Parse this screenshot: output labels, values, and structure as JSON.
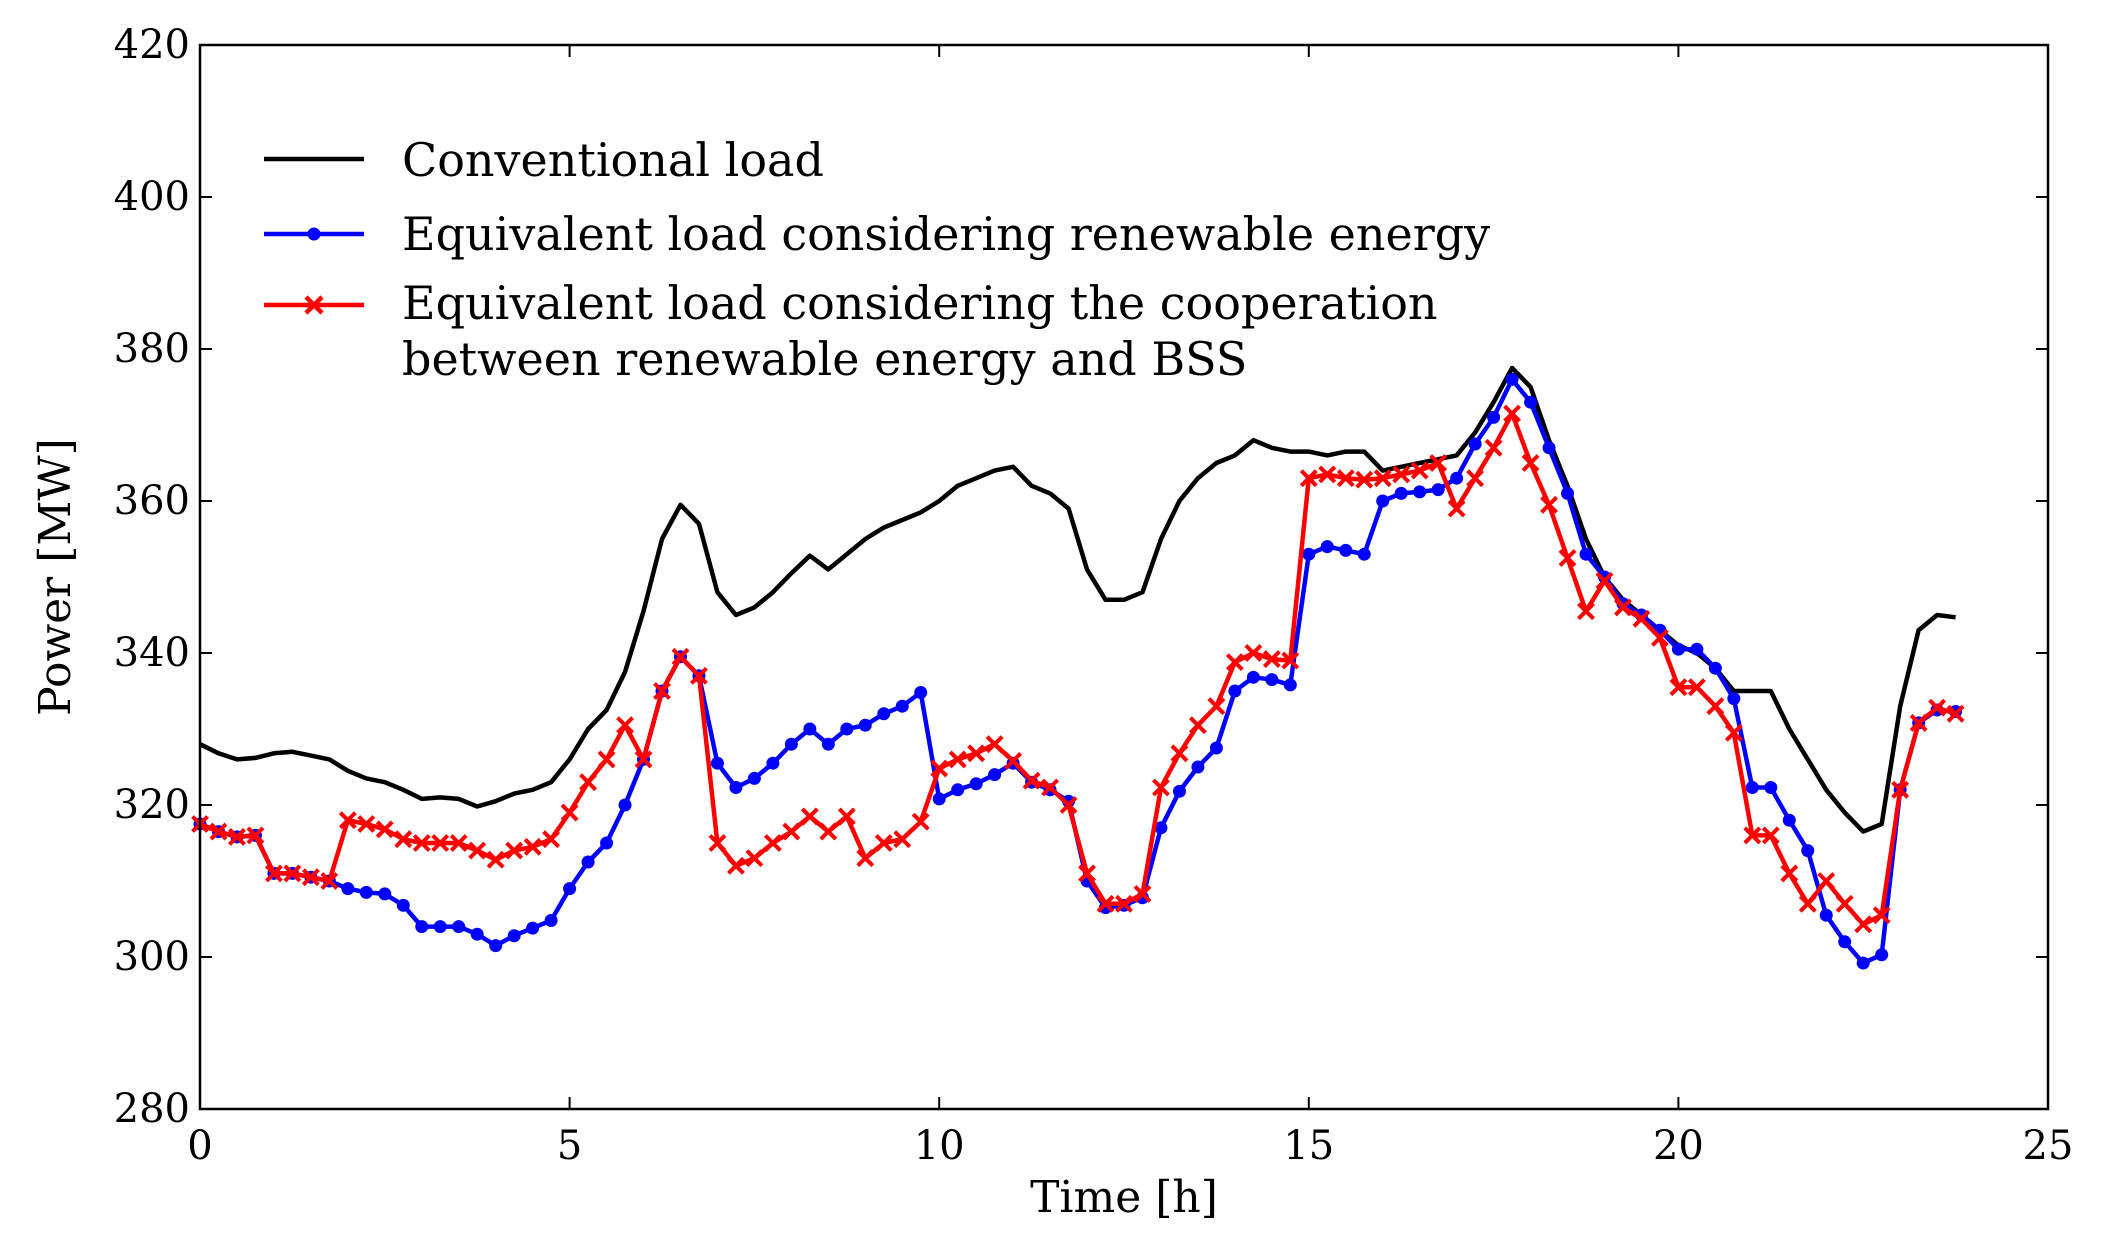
{
  "chart_data": {
    "type": "line",
    "title": "",
    "xlabel": "Time [h]",
    "ylabel": "Power [MW]",
    "xlim": [
      0,
      25
    ],
    "ylim": [
      280,
      420
    ],
    "xticks": [
      0,
      5,
      10,
      15,
      20,
      25
    ],
    "yticks": [
      280,
      300,
      320,
      340,
      360,
      380,
      400,
      420
    ],
    "grid": false,
    "legend_position": "top-left",
    "x": [
      0,
      0.25,
      0.5,
      0.75,
      1,
      1.25,
      1.5,
      1.75,
      2,
      2.25,
      2.5,
      2.75,
      3,
      3.25,
      3.5,
      3.75,
      4,
      4.25,
      4.5,
      4.75,
      5,
      5.25,
      5.5,
      5.75,
      6,
      6.25,
      6.5,
      6.75,
      7,
      7.25,
      7.5,
      7.75,
      8,
      8.25,
      8.5,
      8.75,
      9,
      9.25,
      9.5,
      9.75,
      10,
      10.25,
      10.5,
      10.75,
      11,
      11.25,
      11.5,
      11.75,
      12,
      12.25,
      12.5,
      12.75,
      13,
      13.25,
      13.5,
      13.75,
      14,
      14.25,
      14.5,
      14.75,
      15,
      15.25,
      15.5,
      15.75,
      16,
      16.25,
      16.5,
      16.75,
      17,
      17.25,
      17.5,
      17.75,
      18,
      18.25,
      18.5,
      18.75,
      19,
      19.25,
      19.5,
      19.75,
      20,
      20.25,
      20.5,
      20.75,
      21,
      21.25,
      21.5,
      21.75,
      22,
      22.25,
      22.5,
      22.75,
      23,
      23.25,
      23.5,
      23.75
    ],
    "series": [
      {
        "name": "Conventional load",
        "color": "#000000",
        "marker": "none",
        "values": [
          328.0,
          326.8,
          326.0,
          326.2,
          326.8,
          327.0,
          326.5,
          326.0,
          324.5,
          323.5,
          323.0,
          322.0,
          320.8,
          321.0,
          320.8,
          319.8,
          320.5,
          321.5,
          322.0,
          323.0,
          326.0,
          330.0,
          332.5,
          337.5,
          345.5,
          355.0,
          359.5,
          357.0,
          348.0,
          345.0,
          346.0,
          348.0,
          350.5,
          352.8,
          351.0,
          353.0,
          355.0,
          356.5,
          357.5,
          358.5,
          360.0,
          362.0,
          363.0,
          364.0,
          364.5,
          362.0,
          361.0,
          359.0,
          351.0,
          347.0,
          347.0,
          348.0,
          355.0,
          360.0,
          363.0,
          365.0,
          366.0,
          368.0,
          367.0,
          366.5,
          366.5,
          366.0,
          366.5,
          366.5,
          364.0,
          364.5,
          365.0,
          365.5,
          366.0,
          369.0,
          373.0,
          377.5,
          375.0,
          368.0,
          362.0,
          355.0,
          350.0,
          347.0,
          345.0,
          343.0,
          341.0,
          340.0,
          338.0,
          335.0,
          335.0,
          335.0,
          330.0,
          326.0,
          322.0,
          319.0,
          316.5,
          317.5,
          333.0,
          343.0,
          345.0,
          344.7
        ]
      },
      {
        "name": "Equivalent load considering renewable energy",
        "color": "#0000ff",
        "marker": "circle",
        "values": [
          317.5,
          316.5,
          315.8,
          316.0,
          311.0,
          311.0,
          310.5,
          310.0,
          309.0,
          308.5,
          308.3,
          306.8,
          304.0,
          304.0,
          304.0,
          303.0,
          301.5,
          302.8,
          303.8,
          304.8,
          309.0,
          312.5,
          315.0,
          320.0,
          326.0,
          335.0,
          339.5,
          337.0,
          325.5,
          322.3,
          323.5,
          325.5,
          328.0,
          330.0,
          328.0,
          330.0,
          330.5,
          332.0,
          333.0,
          334.8,
          320.8,
          322.0,
          322.8,
          324.0,
          325.5,
          323.0,
          322.0,
          320.5,
          310.0,
          306.5,
          306.8,
          307.8,
          317.0,
          321.8,
          325.0,
          327.5,
          335.0,
          336.8,
          336.5,
          335.8,
          353.0,
          354.0,
          353.5,
          353.0,
          360.0,
          361.0,
          361.2,
          361.5,
          363.0,
          367.5,
          371.0,
          376.0,
          373.0,
          367.0,
          361.0,
          353.0,
          350.0,
          346.5,
          345.0,
          343.0,
          340.5,
          340.5,
          338.0,
          334.0,
          322.3,
          322.3,
          318.0,
          314.0,
          305.5,
          302.0,
          299.2,
          300.3,
          322.0,
          330.8,
          332.5,
          332.3
        ]
      },
      {
        "name": "Equivalent load considering the cooperation between renewable energy and BSS",
        "color": "#ff0000",
        "marker": "x",
        "values": [
          317.5,
          316.5,
          315.8,
          316.0,
          311.0,
          311.0,
          310.5,
          310.0,
          318.0,
          317.5,
          316.8,
          315.5,
          315.0,
          315.0,
          315.0,
          314.0,
          312.8,
          314.0,
          314.5,
          315.5,
          319.0,
          323.0,
          326.0,
          330.5,
          326.0,
          335.0,
          339.5,
          337.0,
          315.0,
          312.0,
          313.0,
          315.0,
          316.5,
          318.5,
          316.5,
          318.5,
          313.0,
          315.0,
          315.5,
          317.8,
          324.8,
          326.0,
          326.8,
          328.0,
          325.8,
          323.2,
          322.3,
          320.0,
          311.0,
          307.0,
          307.0,
          308.3,
          322.3,
          326.8,
          330.5,
          333.0,
          338.8,
          340.0,
          339.2,
          339.0,
          363.0,
          363.5,
          363.0,
          362.8,
          363.0,
          363.5,
          364.0,
          365.0,
          359.0,
          363.0,
          367.0,
          371.5,
          365.0,
          359.5,
          352.5,
          345.5,
          349.5,
          346.0,
          344.5,
          342.0,
          335.5,
          335.5,
          333.0,
          329.5,
          316.0,
          316.0,
          311.0,
          307.0,
          310.0,
          307.0,
          304.3,
          305.5,
          322.0,
          330.8,
          332.8,
          332.0
        ]
      }
    ]
  },
  "legend": {
    "items": [
      {
        "label": "Conventional load"
      },
      {
        "label": "Equivalent load considering renewable energy"
      },
      {
        "label": "Equivalent load considering the cooperation",
        "label_line2": "between renewable energy and BSS"
      }
    ]
  }
}
